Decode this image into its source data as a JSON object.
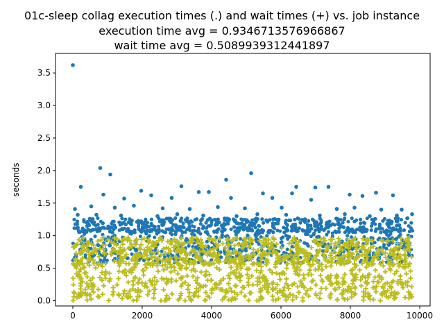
{
  "chart_data": {
    "type": "scatter",
    "title_lines": [
      "01c-sleep collag execution times (.) and wait times (+) vs. job instance",
      "execution time avg = 0.9346713576966867",
      "wait time avg = 0.5089939312441897"
    ],
    "xlabel": "",
    "ylabel": "seconds",
    "xlim": [
      -500,
      10300
    ],
    "ylim": [
      -0.08,
      3.8
    ],
    "x_ticks": [
      0,
      2000,
      4000,
      6000,
      8000,
      10000
    ],
    "y_ticks": [
      0.0,
      0.5,
      1.0,
      1.5,
      2.0,
      2.5,
      3.0,
      3.5
    ],
    "x_tick_labels": [
      "0",
      "2000",
      "4000",
      "6000",
      "8000",
      "10000"
    ],
    "y_tick_labels": [
      "0.0",
      "0.5",
      "1.0",
      "1.5",
      "2.0",
      "2.5",
      "3.0",
      "3.5"
    ],
    "grid": false,
    "series": [
      {
        "marker": "circle",
        "color": "#1f77b4",
        "points": [
          [
            0,
            3.62
          ],
          [
            790,
            2.04
          ],
          [
            1080,
            1.94
          ],
          [
            5140,
            1.96
          ],
          [
            4420,
            1.86
          ],
          [
            230,
            1.75
          ],
          [
            3130,
            1.76
          ],
          [
            6440,
            1.75
          ],
          [
            6990,
            1.74
          ],
          [
            7370,
            1.75
          ],
          [
            1970,
            1.69
          ],
          [
            3630,
            1.67
          ],
          [
            3920,
            1.67
          ],
          [
            5480,
            1.65
          ],
          [
            6320,
            1.65
          ],
          [
            8740,
            1.66
          ],
          [
            9230,
            1.62
          ],
          [
            7980,
            1.63
          ],
          [
            8350,
            1.61
          ],
          [
            2260,
            1.62
          ],
          [
            880,
            1.63
          ],
          [
            1480,
            1.57
          ],
          [
            2850,
            1.58
          ],
          [
            4560,
            1.58
          ],
          [
            5750,
            1.58
          ],
          [
            6870,
            1.55
          ],
          [
            60,
            1.41
          ],
          [
            530,
            1.45
          ],
          [
            1210,
            1.43
          ],
          [
            1760,
            1.46
          ],
          [
            2590,
            1.42
          ],
          [
            3370,
            1.41
          ],
          [
            4180,
            1.44
          ],
          [
            4960,
            1.42
          ],
          [
            6020,
            1.43
          ],
          [
            7610,
            1.41
          ],
          [
            8120,
            1.43
          ],
          [
            8890,
            1.4
          ],
          [
            9480,
            1.4
          ],
          [
            9780,
            1.33
          ],
          [
            140,
            1.32
          ],
          [
            680,
            1.32
          ],
          [
            1390,
            1.31
          ],
          [
            2440,
            1.3
          ],
          [
            3010,
            1.33
          ],
          [
            3760,
            1.31
          ],
          [
            4720,
            1.3
          ],
          [
            5320,
            1.33
          ],
          [
            6150,
            1.32
          ],
          [
            7120,
            1.31
          ],
          [
            7840,
            1.33
          ],
          [
            8560,
            1.3
          ],
          [
            9340,
            1.31
          ]
        ]
      },
      {
        "marker": "plus",
        "color": "#bcbd22",
        "points": [
          [
            120,
            0.05
          ],
          [
            860,
            0.1
          ],
          [
            1540,
            0.07
          ],
          [
            2330,
            0.04
          ],
          [
            3110,
            0.08
          ],
          [
            3940,
            0.05
          ],
          [
            4650,
            0.04
          ],
          [
            5420,
            0.06
          ],
          [
            6210,
            0.05
          ],
          [
            7030,
            0.08
          ],
          [
            7790,
            0.04
          ],
          [
            8510,
            0.06
          ],
          [
            9300,
            0.05
          ],
          [
            9720,
            0.09
          ]
        ]
      }
    ]
  }
}
